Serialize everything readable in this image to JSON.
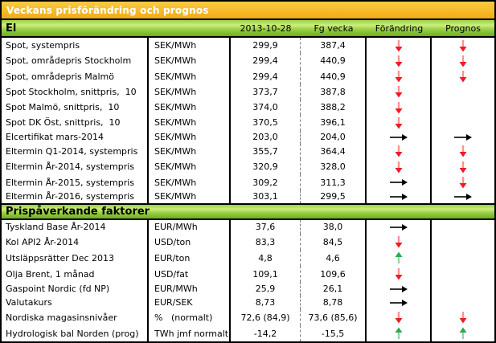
{
  "title": "Veckans prisförändring och prognos",
  "columns": {
    "date": "2013-10-28",
    "prev": "Fg vecka",
    "change": "Förändring",
    "forecast": "Prognos"
  },
  "sections": [
    {
      "name": "El",
      "rows": [
        {
          "label": "Spot, systempris",
          "unit": "SEK/MWh",
          "current": "299,9",
          "previous": "387,4",
          "change": "down-red",
          "forecast": "down-red"
        },
        {
          "label": "Spot, områdepris Stockholm",
          "unit": "SEK/MWh",
          "current": "299,4",
          "previous": "440,9",
          "change": "down-red",
          "forecast": "down-red"
        },
        {
          "label": "Spot, områdepris Malmö",
          "unit": "SEK/MWh",
          "current": "299,4",
          "previous": "440,9",
          "change": "down-red",
          "forecast": "down-red"
        },
        {
          "label": "Spot Stockholm, snittpris,  10",
          "unit": "SEK/MWh",
          "current": "373,7",
          "previous": "387,8",
          "change": "down-red",
          "forecast": ""
        },
        {
          "label": "Spot Malmö, snittpris,  10",
          "unit": "SEK/MWh",
          "current": "374,0",
          "previous": "388,2",
          "change": "down-red",
          "forecast": ""
        },
        {
          "label": "Spot DK Öst, snittpris,  10",
          "unit": "SEK/MWh",
          "current": "370,5",
          "previous": "396,1",
          "change": "down-red",
          "forecast": ""
        },
        {
          "label": "Elcertifikat mars-2014",
          "unit": "SEK/MWh",
          "current": "203,0",
          "previous": "204,0",
          "change": "right-black",
          "forecast": "right-black"
        },
        {
          "label": "Eltermin Q1-2014, systempris",
          "unit": "SEK/MWh",
          "current": "355,7",
          "previous": "364,4",
          "change": "down-red",
          "forecast": "down-red"
        },
        {
          "label": "Eltermin År-2014, systempris",
          "unit": "SEK/MWh",
          "current": "320,9",
          "previous": "328,0",
          "change": "down-red",
          "forecast": "down-red"
        },
        {
          "label": "Eltermin År-2015, systempris",
          "unit": "SEK/MWh",
          "current": "309,2",
          "previous": "311,3",
          "change": "right-black",
          "forecast": "down-red"
        },
        {
          "label": "Eltermin År-2016, systempris",
          "unit": "SEK/MWh",
          "current": "303,1",
          "previous": "299,5",
          "change": "right-black",
          "forecast": "right-black"
        }
      ]
    },
    {
      "name": "Prispåverkande faktorer",
      "rows": [
        {
          "label": "Tyskland Base År-2014",
          "unit": "EUR/MWh",
          "current": "37,6",
          "previous": "38,0",
          "change": "right-black",
          "forecast": ""
        },
        {
          "label": "Kol API2 År-2014",
          "unit": "USD/ton",
          "current": "83,3",
          "previous": "84,5",
          "change": "down-red",
          "forecast": ""
        },
        {
          "label": "Utsläppsrätter Dec 2013",
          "unit": "EUR/ton",
          "current": "4,8",
          "previous": "4,6",
          "change": "up-green",
          "forecast": ""
        },
        {
          "label": "Olja Brent, 1 månad",
          "unit": "USD/fat",
          "current": "109,1",
          "previous": "109,6",
          "change": "down-red",
          "forecast": ""
        },
        {
          "label": "Gaspoint Nordic (fd NP)",
          "unit": "EUR/MWh",
          "current": "25,9",
          "previous": "26,1",
          "change": "right-black",
          "forecast": ""
        },
        {
          "label": "Valutakurs",
          "unit": "EUR/SEK",
          "current": "8,73",
          "previous": "8,78",
          "change": "right-black",
          "forecast": ""
        },
        {
          "label": "Nordiska magasinsnivåer",
          "unit": "%   (normalt)",
          "current": "72,6 (84,9)",
          "previous": "73,6 (85,6)",
          "change": "down-red",
          "forecast": "down-red"
        },
        {
          "label": "Hydrologisk bal Norden (prog)",
          "unit": "TWh jmf normalt",
          "current": "-14,2",
          "previous": "-15,5",
          "change": "up-green",
          "forecast": "up-green"
        }
      ]
    }
  ],
  "icons": {
    "down-red": "down-arrow-icon",
    "right-black": "right-arrow-icon",
    "up-green": "up-arrow-icon"
  },
  "colors": {
    "title_bar_top": "#fbca42",
    "title_bar_bottom": "#f0ab1a",
    "section_green_light": "#cdee7d",
    "section_green_dark": "#6fab26",
    "border_black": "#000000",
    "title_text": "#ffffff",
    "arrow_red_head": "#ee1c25",
    "arrow_red_stem": "#ff9191",
    "arrow_green_head": "#2fa94f",
    "arrow_green_stem": "#93d6a3",
    "arrow_black": "#000000"
  }
}
